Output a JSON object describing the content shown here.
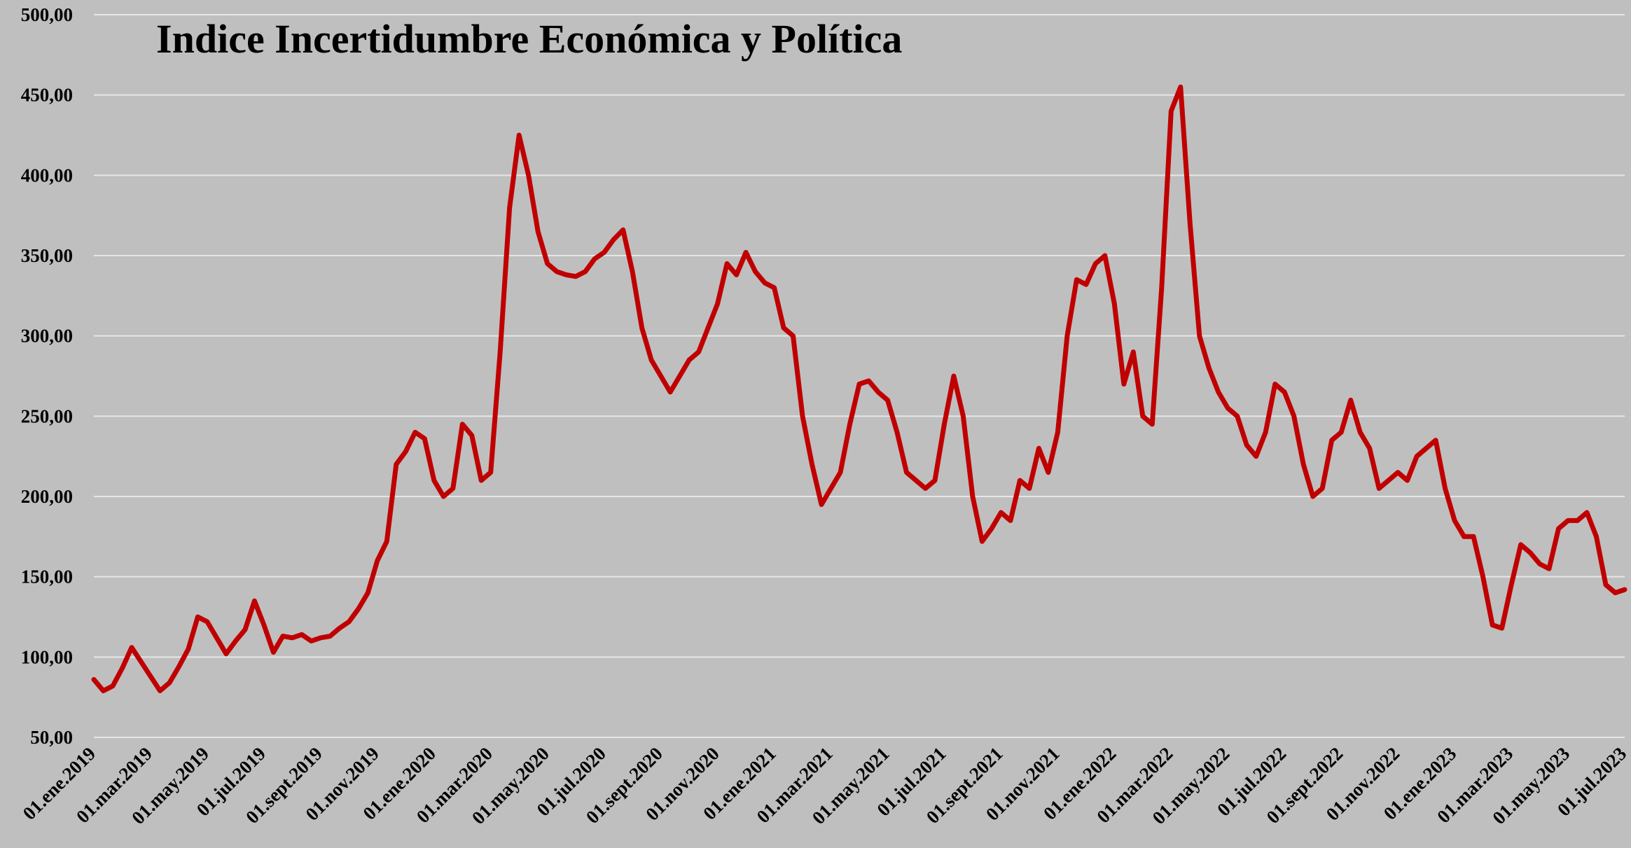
{
  "chart_data": {
    "type": "line",
    "title": "Indice Incertidumbre Económica y Política",
    "categories": [
      "01.ene.2019",
      null,
      null,
      null,
      null,
      null,
      "01.mar.2019",
      null,
      null,
      null,
      null,
      null,
      "01.may.2019",
      null,
      null,
      null,
      null,
      null,
      "01.jul.2019",
      null,
      null,
      null,
      null,
      null,
      "01.sept.2019",
      null,
      null,
      null,
      null,
      null,
      "01.nov.2019",
      null,
      null,
      null,
      null,
      null,
      "01.ene.2020",
      null,
      null,
      null,
      null,
      null,
      "01.mar.2020",
      null,
      null,
      null,
      null,
      null,
      "01.may.2020",
      null,
      null,
      null,
      null,
      null,
      "01.jul.2020",
      null,
      null,
      null,
      null,
      null,
      "01.sept.2020",
      null,
      null,
      null,
      null,
      null,
      "01.nov.2020",
      null,
      null,
      null,
      null,
      null,
      "01.ene.2021",
      null,
      null,
      null,
      null,
      null,
      "01.mar.2021",
      null,
      null,
      null,
      null,
      null,
      "01.may.2021",
      null,
      null,
      null,
      null,
      null,
      "01.jul.2021",
      null,
      null,
      null,
      null,
      null,
      "01.sept.2021",
      null,
      null,
      null,
      null,
      null,
      "01.nov.2021",
      null,
      null,
      null,
      null,
      null,
      "01.ene.2022",
      null,
      null,
      null,
      null,
      null,
      "01.mar.2022",
      null,
      null,
      null,
      null,
      null,
      "01.may.2022",
      null,
      null,
      null,
      null,
      null,
      "01.jul.2022",
      null,
      null,
      null,
      null,
      null,
      "01.sept.2022",
      null,
      null,
      null,
      null,
      null,
      "01.nov.2022",
      null,
      null,
      null,
      null,
      null,
      "01.ene.2023",
      null,
      null,
      null,
      null,
      null,
      "01.mar.2023",
      null,
      null,
      null,
      null,
      null,
      "01.may.2023",
      null,
      null,
      null,
      null,
      null,
      "01.jul.2023"
    ],
    "series": [
      {
        "name": "Indice",
        "color": "#c00000",
        "values": [
          86,
          79,
          82,
          93,
          106,
          97,
          88,
          79,
          84,
          94,
          105,
          125,
          122,
          112,
          102,
          110,
          117,
          135,
          120,
          103,
          113,
          112,
          114,
          110,
          112,
          113,
          118,
          122,
          130,
          140,
          160,
          172,
          220,
          228,
          240,
          236,
          210,
          200,
          205,
          245,
          238,
          210,
          215,
          290,
          380,
          425,
          400,
          365,
          345,
          340,
          338,
          337,
          340,
          348,
          352,
          360,
          366,
          340,
          305,
          285,
          275,
          265,
          275,
          285,
          290,
          305,
          320,
          345,
          338,
          352,
          340,
          333,
          330,
          305,
          300,
          250,
          220,
          195,
          205,
          215,
          245,
          270,
          272,
          265,
          260,
          240,
          215,
          210,
          205,
          210,
          245,
          275,
          250,
          200,
          172,
          180,
          190,
          185,
          210,
          205,
          230,
          215,
          240,
          300,
          335,
          332,
          345,
          350,
          320,
          270,
          290,
          250,
          245,
          330,
          440,
          455,
          370,
          300,
          280,
          265,
          255,
          250,
          232,
          225,
          240,
          270,
          265,
          250,
          220,
          200,
          205,
          235,
          240,
          260,
          240,
          230,
          205,
          210,
          215,
          210,
          225,
          230,
          235,
          205,
          185,
          175,
          175,
          150,
          120,
          118,
          145,
          170,
          165,
          158,
          155,
          180,
          185,
          185,
          190,
          175,
          145,
          140,
          142
        ]
      }
    ],
    "ylim": [
      50,
      500
    ],
    "yticks": [
      {
        "value": 50,
        "label": "50,00"
      },
      {
        "value": 100,
        "label": "100,00"
      },
      {
        "value": 150,
        "label": "150,00"
      },
      {
        "value": 200,
        "label": "200,00"
      },
      {
        "value": 250,
        "label": "250,00"
      },
      {
        "value": 300,
        "label": "300,00"
      },
      {
        "value": 350,
        "label": "350,00"
      },
      {
        "value": 400,
        "label": "400,00"
      },
      {
        "value": 450,
        "label": "450,00"
      },
      {
        "value": 500,
        "label": "500,00"
      }
    ],
    "grid": true
  }
}
